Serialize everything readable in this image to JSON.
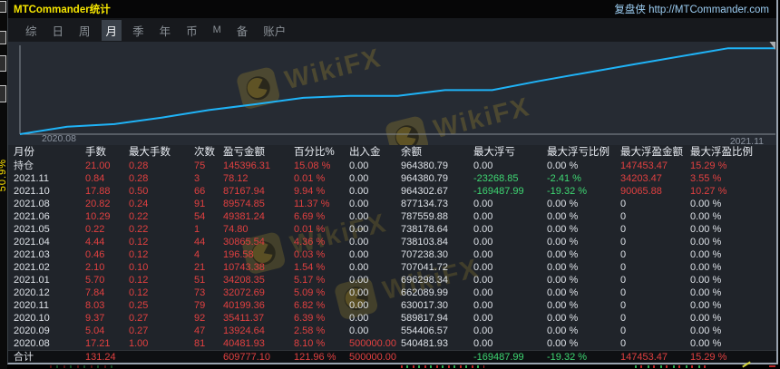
{
  "window": {
    "title": "MTCommander统计",
    "brand": "复盘侠 http://MTCommander.com"
  },
  "menu": {
    "items": [
      {
        "label": "综",
        "active": false
      },
      {
        "label": "日",
        "active": false
      },
      {
        "label": "周",
        "active": false
      },
      {
        "label": "月",
        "active": true
      },
      {
        "label": "季",
        "active": false
      },
      {
        "label": "年",
        "active": false
      },
      {
        "label": "币",
        "active": false
      },
      {
        "label": "M",
        "active": false
      },
      {
        "label": "备",
        "active": false
      },
      {
        "label": "账户",
        "active": false
      }
    ]
  },
  "watermark": {
    "text": "WikiFX"
  },
  "background": {
    "vertical_label": "50.9%"
  },
  "colors": {
    "accent_line": "#1fb3f7",
    "negative_red": "#e04040",
    "drawdown_green": "#3ed672",
    "title_yellow": "#f5e500",
    "brand_blue": "#9ccdf2"
  },
  "chart": {
    "type": "line",
    "x_start_label": "2020.08",
    "x_end_label": "2021.11",
    "value_domain": [
      500000,
      975000
    ],
    "series": [
      {
        "x": 0.0,
        "v": 500000.0
      },
      {
        "x": 0.0625,
        "v": 540481.93
      },
      {
        "x": 0.125,
        "v": 554406.57
      },
      {
        "x": 0.1875,
        "v": 589817.94
      },
      {
        "x": 0.25,
        "v": 630017.3
      },
      {
        "x": 0.3125,
        "v": 662089.99
      },
      {
        "x": 0.375,
        "v": 696298.34
      },
      {
        "x": 0.4375,
        "v": 707041.72
      },
      {
        "x": 0.5,
        "v": 707238.3
      },
      {
        "x": 0.5625,
        "v": 738103.84
      },
      {
        "x": 0.625,
        "v": 738178.64
      },
      {
        "x": 0.6875,
        "v": 787559.88
      },
      {
        "x": 0.8125,
        "v": 877134.73
      },
      {
        "x": 0.9375,
        "v": 964302.67
      },
      {
        "x": 1.0,
        "v": 964380.79
      }
    ]
  },
  "table": {
    "columns": [
      "月份",
      "手数",
      "最大手数",
      "次数",
      "盈亏金额",
      "百分比%",
      "出入金",
      "余额",
      "最大浮亏",
      "最大浮亏比例",
      "最大浮盈金额",
      "最大浮盈比例"
    ],
    "rows": [
      {
        "cells": [
          [
            "持仓",
            "w"
          ],
          [
            "21.00",
            "r"
          ],
          [
            "0.28",
            "r"
          ],
          [
            "75",
            "r"
          ],
          [
            "145396.31",
            "r"
          ],
          [
            "15.08 %",
            "r"
          ],
          [
            "0.00",
            "w"
          ],
          [
            "964380.79",
            "w"
          ],
          [
            "0.00",
            "w"
          ],
          [
            "0.00 %",
            "w"
          ],
          [
            "147453.47",
            "r"
          ],
          [
            "15.29 %",
            "r"
          ]
        ]
      },
      {
        "cells": [
          [
            "2021.11",
            "w"
          ],
          [
            "0.84",
            "r"
          ],
          [
            "0.28",
            "r"
          ],
          [
            "3",
            "r"
          ],
          [
            "78.12",
            "r"
          ],
          [
            "0.01 %",
            "r"
          ],
          [
            "0.00",
            "w"
          ],
          [
            "964380.79",
            "w"
          ],
          [
            "-23268.85",
            "g"
          ],
          [
            "-2.41 %",
            "g"
          ],
          [
            "34203.47",
            "r"
          ],
          [
            "3.55 %",
            "r"
          ]
        ]
      },
      {
        "cells": [
          [
            "2021.10",
            "w"
          ],
          [
            "17.88",
            "r"
          ],
          [
            "0.50",
            "r"
          ],
          [
            "66",
            "r"
          ],
          [
            "87167.94",
            "r"
          ],
          [
            "9.94 %",
            "r"
          ],
          [
            "0.00",
            "w"
          ],
          [
            "964302.67",
            "w"
          ],
          [
            "-169487.99",
            "g"
          ],
          [
            "-19.32 %",
            "g"
          ],
          [
            "90065.88",
            "r"
          ],
          [
            "10.27 %",
            "r"
          ]
        ]
      },
      {
        "cells": [
          [
            "2021.08",
            "w"
          ],
          [
            "20.82",
            "r"
          ],
          [
            "0.24",
            "r"
          ],
          [
            "91",
            "r"
          ],
          [
            "89574.85",
            "r"
          ],
          [
            "11.37 %",
            "r"
          ],
          [
            "0.00",
            "w"
          ],
          [
            "877134.73",
            "w"
          ],
          [
            "0.00",
            "w"
          ],
          [
            "0.00 %",
            "w"
          ],
          [
            "0",
            "w"
          ],
          [
            "0.00 %",
            "w"
          ]
        ]
      },
      {
        "cells": [
          [
            "2021.06",
            "w"
          ],
          [
            "10.29",
            "r"
          ],
          [
            "0.22",
            "r"
          ],
          [
            "54",
            "r"
          ],
          [
            "49381.24",
            "r"
          ],
          [
            "6.69 %",
            "r"
          ],
          [
            "0.00",
            "w"
          ],
          [
            "787559.88",
            "w"
          ],
          [
            "0.00",
            "w"
          ],
          [
            "0.00 %",
            "w"
          ],
          [
            "0",
            "w"
          ],
          [
            "0.00 %",
            "w"
          ]
        ]
      },
      {
        "cells": [
          [
            "2021.05",
            "w"
          ],
          [
            "0.22",
            "r"
          ],
          [
            "0.22",
            "r"
          ],
          [
            "1",
            "r"
          ],
          [
            "74.80",
            "r"
          ],
          [
            "0.01 %",
            "r"
          ],
          [
            "0.00",
            "w"
          ],
          [
            "738178.64",
            "w"
          ],
          [
            "0.00",
            "w"
          ],
          [
            "0.00 %",
            "w"
          ],
          [
            "0",
            "w"
          ],
          [
            "0.00 %",
            "w"
          ]
        ]
      },
      {
        "cells": [
          [
            "2021.04",
            "w"
          ],
          [
            "4.44",
            "r"
          ],
          [
            "0.12",
            "r"
          ],
          [
            "44",
            "r"
          ],
          [
            "30865.54",
            "r"
          ],
          [
            "4.36 %",
            "r"
          ],
          [
            "0.00",
            "w"
          ],
          [
            "738103.84",
            "w"
          ],
          [
            "0.00",
            "w"
          ],
          [
            "0.00 %",
            "w"
          ],
          [
            "0",
            "w"
          ],
          [
            "0.00 %",
            "w"
          ]
        ]
      },
      {
        "cells": [
          [
            "2021.03",
            "w"
          ],
          [
            "0.46",
            "r"
          ],
          [
            "0.12",
            "r"
          ],
          [
            "4",
            "r"
          ],
          [
            "196.58",
            "r"
          ],
          [
            "0.03 %",
            "r"
          ],
          [
            "0.00",
            "w"
          ],
          [
            "707238.30",
            "w"
          ],
          [
            "0.00",
            "w"
          ],
          [
            "0.00 %",
            "w"
          ],
          [
            "0",
            "w"
          ],
          [
            "0.00 %",
            "w"
          ]
        ]
      },
      {
        "cells": [
          [
            "2021.02",
            "w"
          ],
          [
            "2.10",
            "r"
          ],
          [
            "0.10",
            "r"
          ],
          [
            "21",
            "r"
          ],
          [
            "10743.38",
            "r"
          ],
          [
            "1.54 %",
            "r"
          ],
          [
            "0.00",
            "w"
          ],
          [
            "707041.72",
            "w"
          ],
          [
            "0.00",
            "w"
          ],
          [
            "0.00 %",
            "w"
          ],
          [
            "0",
            "w"
          ],
          [
            "0.00 %",
            "w"
          ]
        ]
      },
      {
        "cells": [
          [
            "2021.01",
            "w"
          ],
          [
            "5.70",
            "r"
          ],
          [
            "0.12",
            "r"
          ],
          [
            "51",
            "r"
          ],
          [
            "34208.35",
            "r"
          ],
          [
            "5.17 %",
            "r"
          ],
          [
            "0.00",
            "w"
          ],
          [
            "696298.34",
            "w"
          ],
          [
            "0.00",
            "w"
          ],
          [
            "0.00 %",
            "w"
          ],
          [
            "0",
            "w"
          ],
          [
            "0.00 %",
            "w"
          ]
        ]
      },
      {
        "cells": [
          [
            "2020.12",
            "w"
          ],
          [
            "7.84",
            "r"
          ],
          [
            "0.12",
            "r"
          ],
          [
            "73",
            "r"
          ],
          [
            "32072.69",
            "r"
          ],
          [
            "5.09 %",
            "r"
          ],
          [
            "0.00",
            "w"
          ],
          [
            "662089.99",
            "w"
          ],
          [
            "0.00",
            "w"
          ],
          [
            "0.00 %",
            "w"
          ],
          [
            "0",
            "w"
          ],
          [
            "0.00 %",
            "w"
          ]
        ]
      },
      {
        "cells": [
          [
            "2020.11",
            "w"
          ],
          [
            "8.03",
            "r"
          ],
          [
            "0.25",
            "r"
          ],
          [
            "79",
            "r"
          ],
          [
            "40199.36",
            "r"
          ],
          [
            "6.82 %",
            "r"
          ],
          [
            "0.00",
            "w"
          ],
          [
            "630017.30",
            "w"
          ],
          [
            "0.00",
            "w"
          ],
          [
            "0.00 %",
            "w"
          ],
          [
            "0",
            "w"
          ],
          [
            "0.00 %",
            "w"
          ]
        ]
      },
      {
        "cells": [
          [
            "2020.10",
            "w"
          ],
          [
            "9.37",
            "r"
          ],
          [
            "0.27",
            "r"
          ],
          [
            "92",
            "r"
          ],
          [
            "35411.37",
            "r"
          ],
          [
            "6.39 %",
            "r"
          ],
          [
            "0.00",
            "w"
          ],
          [
            "589817.94",
            "w"
          ],
          [
            "0.00",
            "w"
          ],
          [
            "0.00 %",
            "w"
          ],
          [
            "0",
            "w"
          ],
          [
            "0.00 %",
            "w"
          ]
        ]
      },
      {
        "cells": [
          [
            "2020.09",
            "w"
          ],
          [
            "5.04",
            "r"
          ],
          [
            "0.27",
            "r"
          ],
          [
            "47",
            "r"
          ],
          [
            "13924.64",
            "r"
          ],
          [
            "2.58 %",
            "r"
          ],
          [
            "0.00",
            "w"
          ],
          [
            "554406.57",
            "w"
          ],
          [
            "0.00",
            "w"
          ],
          [
            "0.00 %",
            "w"
          ],
          [
            "0",
            "w"
          ],
          [
            "0.00 %",
            "w"
          ]
        ]
      },
      {
        "cells": [
          [
            "2020.08",
            "w"
          ],
          [
            "17.21",
            "r"
          ],
          [
            "1.00",
            "r"
          ],
          [
            "81",
            "r"
          ],
          [
            "40481.93",
            "r"
          ],
          [
            "8.10 %",
            "r"
          ],
          [
            "500000.00",
            "r"
          ],
          [
            "540481.93",
            "w"
          ],
          [
            "0.00",
            "w"
          ],
          [
            "0.00 %",
            "w"
          ],
          [
            "0",
            "w"
          ],
          [
            "0.00 %",
            "w"
          ]
        ]
      },
      {
        "total": true,
        "cells": [
          [
            "合计",
            "w"
          ],
          [
            "131.24",
            "r"
          ],
          [
            "",
            "w"
          ],
          [
            "",
            "w"
          ],
          [
            "609777.10",
            "r"
          ],
          [
            "121.96 %",
            "r"
          ],
          [
            "500000.00",
            "r"
          ],
          [
            "",
            "w"
          ],
          [
            "-169487.99",
            "g"
          ],
          [
            "-19.32 %",
            "g"
          ],
          [
            "147453.47",
            "r"
          ],
          [
            "15.29 %",
            "r"
          ]
        ]
      }
    ]
  }
}
